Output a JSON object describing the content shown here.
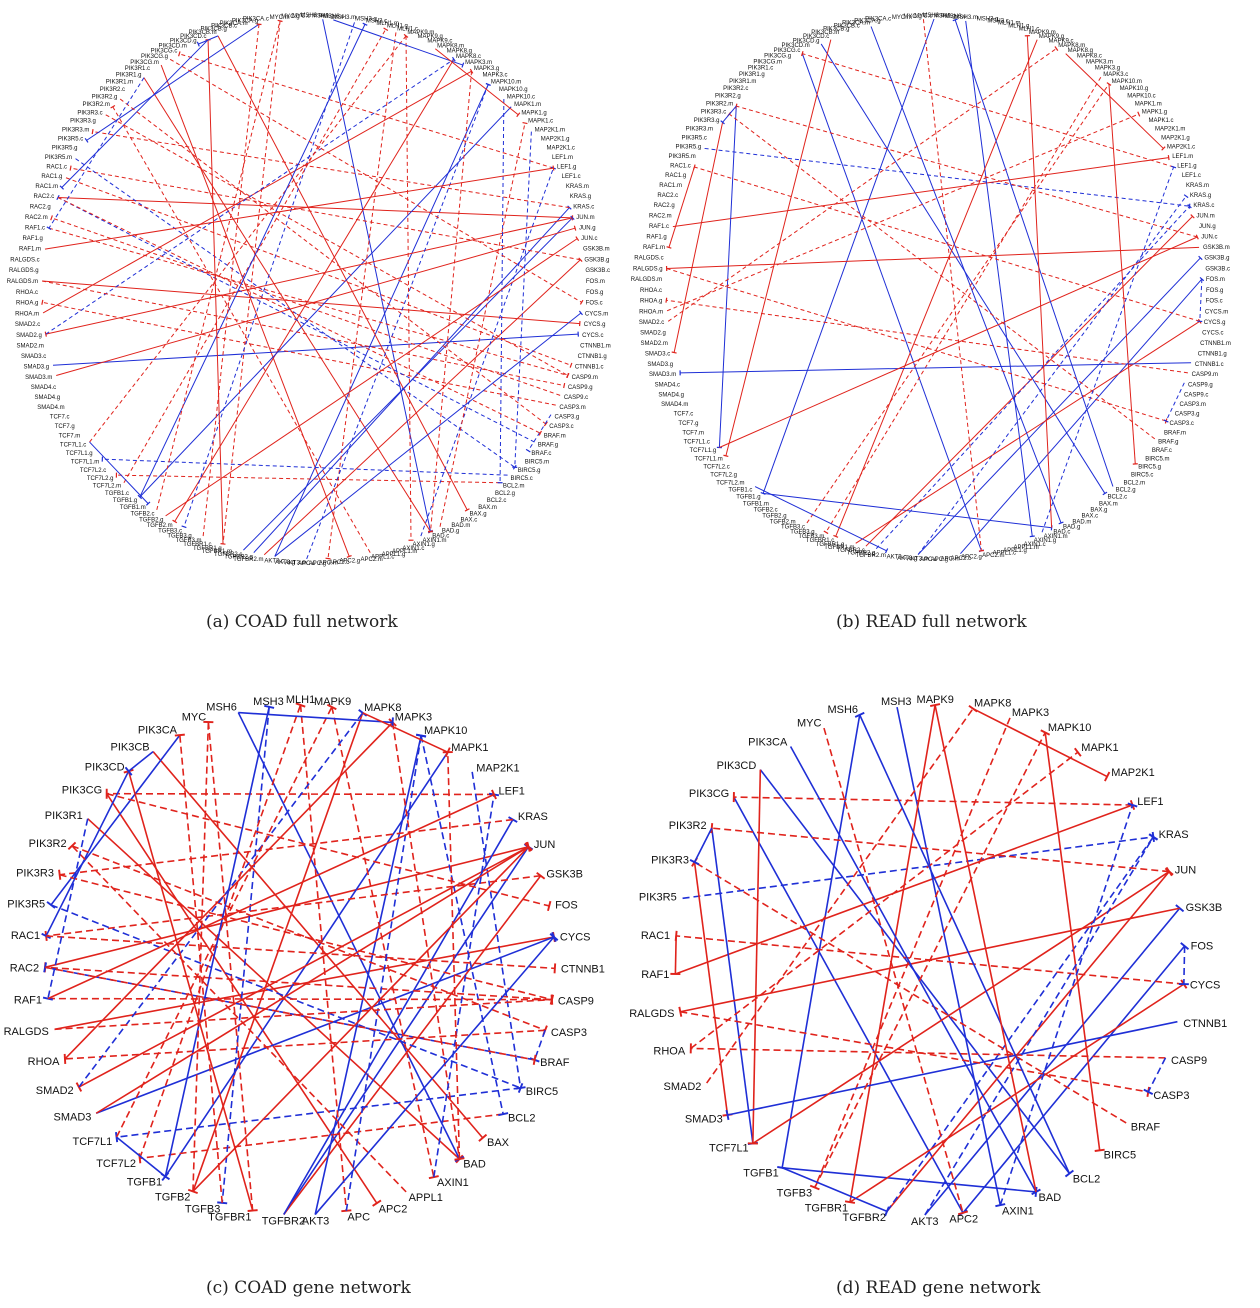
{
  "captions": {
    "a": "(a)  COAD full network",
    "b": "(b)  READ full network",
    "c": "(c)  COAD gene network",
    "d": "(d)  READ gene network"
  },
  "colors": {
    "positive": "#e0231c",
    "negative": "#1f2fd6"
  },
  "gene_ring_order": [
    "MSH6",
    "MSH3",
    "MLH1",
    "MAPK9",
    "MAPK8",
    "MAPK3",
    "MAPK10",
    "MAPK1",
    "MAP2K1",
    "LEF1",
    "KRAS",
    "JUN",
    "GSK3B",
    "FOS",
    "CYCS",
    "CTNNB1",
    "CASP9",
    "CASP3",
    "BRAF",
    "BIRC5",
    "BCL2",
    "BAX",
    "BAD",
    "AXIN1",
    "APPL1",
    "APC2",
    "APC",
    "AKT3",
    "TGFBR2",
    "TGFBR1",
    "TGFB3",
    "TGFB2",
    "TGFB1",
    "TCF7L2",
    "TCF7L1",
    "SMAD3",
    "SMAD2",
    "RHOA",
    "RALGDS",
    "RAF1",
    "RAC2",
    "RAC1",
    "PIK3R5",
    "PIK3R3",
    "PIK3R2",
    "PIK3R1",
    "PIK3CG",
    "PIK3CD",
    "PIK3CB",
    "PIK3CA",
    "MYC"
  ],
  "full_ring_order": [
    "MSH6.m",
    "MSH6.g",
    "MSH6.c",
    "MSH3.m",
    "MSH3.g",
    "MSH3.c",
    "MLH1.m",
    "MLH1.g",
    "MLH1.c",
    "MAPK9.m",
    "MAPK9.g",
    "MAPK9.c",
    "MAPK8.m",
    "MAPK8.g",
    "MAPK8.c",
    "MAPK3.m",
    "MAPK3.g",
    "MAPK3.c",
    "MAPK10.m",
    "MAPK10.g",
    "MAPK10.c",
    "MAPK1.m",
    "MAPK1.g",
    "MAPK1.c",
    "MAP2K1.m",
    "MAP2K1.g",
    "MAP2K1.c",
    "LEF1.m",
    "LEF1.g",
    "LEF1.c",
    "KRAS.m",
    "KRAS.g",
    "KRAS.c",
    "JUN.m",
    "JUN.g",
    "JUN.c",
    "GSK3B.m",
    "GSK3B.g",
    "GSK3B.c",
    "FOS.m",
    "FOS.g",
    "FOS.c",
    "CYCS.m",
    "CYCS.g",
    "CYCS.c",
    "CTNNB1.m",
    "CTNNB1.g",
    "CTNNB1.c",
    "CASP9.m",
    "CASP9.g",
    "CASP9.c",
    "CASP3.m",
    "CASP3.g",
    "CASP3.c",
    "BRAF.m",
    "BRAF.g",
    "BRAF.c",
    "BIRC5.m",
    "BIRC5.g",
    "BIRC5.c",
    "BCL2.m",
    "BCL2.g",
    "BCL2.c",
    "BAX.m",
    "BAX.g",
    "BAX.c",
    "BAD.m",
    "BAD.g",
    "BAD.c",
    "AXIN1.m",
    "AXIN1.g",
    "AXIN1.c",
    "APPL1.m",
    "APPL1.g",
    "APPL1.c",
    "APC2.m",
    "APC2.g",
    "APC2.c",
    "APC.m",
    "APC.g",
    "APC.c",
    "AKT3.m",
    "AKT3.g",
    "AKT3.c",
    "TGFBR2.m",
    "TGFBR2.g",
    "TGFBR2.c",
    "TGFBR1.m",
    "TGFBR1.g",
    "TGFBR1.c",
    "TGFB3.m",
    "TGFB3.g",
    "TGFB3.c",
    "TGFB2.m",
    "TGFB2.g",
    "TGFB2.c",
    "TGFB1.m",
    "TGFB1.g",
    "TGFB1.c",
    "TCF7L2.m",
    "TCF7L2.g",
    "TCF7L2.c",
    "TCF7L1.m",
    "TCF7L1.g",
    "TCF7L1.c",
    "TCF7.m",
    "TCF7.g",
    "TCF7.c",
    "SMAD4.m",
    "SMAD4.g",
    "SMAD4.c",
    "SMAD3.m",
    "SMAD3.g",
    "SMAD3.c",
    "SMAD2.m",
    "SMAD2.g",
    "SMAD2.c",
    "RHOA.m",
    "RHOA.g",
    "RHOA.c",
    "RALGDS.m",
    "RALGDS.g",
    "RALGDS.c",
    "RAF1.m",
    "RAF1.g",
    "RAF1.c",
    "RAC2.m",
    "RAC2.g",
    "RAC2.c",
    "RAC1.m",
    "RAC1.g",
    "RAC1.c",
    "PIK3R5.m",
    "PIK3R5.g",
    "PIK3R5.c",
    "PIK3R3.m",
    "PIK3R3.g",
    "PIK3R3.c",
    "PIK3R2.m",
    "PIK3R2.g",
    "PIK3R2.c",
    "PIK3R1.m",
    "PIK3R1.g",
    "PIK3R1.c",
    "PIK3CG.m",
    "PIK3CG.g",
    "PIK3CG.c",
    "PIK3CD.m",
    "PIK3CD.g",
    "PIK3CD.c",
    "PIK3CB.m",
    "PIK3CB.g",
    "PIK3CB.c",
    "PIK3CA.m",
    "PIK3CA.g",
    "PIK3CA.c",
    "MYC.m",
    "MYC.g",
    "MYC.c"
  ],
  "networks": {
    "coad_gene": {
      "nodes": [
        "MSH6",
        "MSH3",
        "MLH1",
        "MAPK9",
        "MAPK8",
        "MAPK3",
        "MAPK10",
        "MAPK1",
        "MAP2K1",
        "LEF1",
        "KRAS",
        "JUN",
        "GSK3B",
        "FOS",
        "CYCS",
        "CTNNB1",
        "CASP9",
        "CASP3",
        "BRAF",
        "BIRC5",
        "BCL2",
        "BAX",
        "BAD",
        "AXIN1",
        "APPL1",
        "APC2",
        "APC",
        "AKT3",
        "TGFBR2",
        "TGFBR1",
        "TGFB3",
        "TGFB2",
        "TGFB1",
        "TCF7L2",
        "TCF7L1",
        "SMAD3",
        "SMAD2",
        "RHOA",
        "RALGDS",
        "RAF1",
        "RAC2",
        "RAC1",
        "PIK3R5",
        "PIK3R3",
        "PIK3R2",
        "PIK3R1",
        "PIK3CG",
        "PIK3CD",
        "PIK3CB",
        "PIK3CA",
        "MYC"
      ],
      "edges": [
        [
          "PIK3CG",
          "APC2",
          "pos",
          "solid"
        ],
        [
          "PIK3R1",
          "BAD",
          "pos",
          "solid"
        ],
        [
          "RAC2",
          "JUN",
          "pos",
          "solid"
        ],
        [
          "RALGDS",
          "CYCS",
          "pos",
          "solid"
        ],
        [
          "SMAD3",
          "CYCS",
          "neg",
          "solid"
        ],
        [
          "TGFBR2",
          "JUN",
          "neg",
          "solid"
        ],
        [
          "TGFBR2",
          "GSK3B",
          "pos",
          "solid"
        ],
        [
          "TGFBR2",
          "KRAS",
          "neg",
          "solid"
        ],
        [
          "AKT3",
          "MAPK10",
          "neg",
          "solid"
        ],
        [
          "PIK3CB",
          "BAX",
          "pos",
          "solid"
        ],
        [
          "MSH6",
          "BAD",
          "neg",
          "solid"
        ],
        [
          "MAPK8",
          "TGFB2",
          "pos",
          "solid"
        ],
        [
          "MAPK1",
          "TGFB1",
          "neg",
          "solid"
        ],
        [
          "LEF1",
          "PIK3CG",
          "pos",
          "dashed"
        ],
        [
          "KRAS",
          "PIK3R3",
          "pos",
          "dashed"
        ],
        [
          "JUN",
          "SMAD2",
          "pos",
          "solid"
        ],
        [
          "GSK3B",
          "RAC1",
          "pos",
          "dashed"
        ],
        [
          "CASP9",
          "RAC2",
          "pos",
          "dashed"
        ],
        [
          "CASP3",
          "RHOA",
          "pos",
          "dashed"
        ],
        [
          "BRAF",
          "RAC2",
          "neg",
          "dashed"
        ],
        [
          "BIRC5",
          "TCF7L1",
          "neg",
          "dashed"
        ],
        [
          "BCL2",
          "TCF7L2",
          "pos",
          "dashed"
        ],
        [
          "PIK3CA",
          "PIK3R5",
          "neg",
          "solid"
        ],
        [
          "PIK3CD",
          "RAC1",
          "neg",
          "solid"
        ],
        [
          "MYC",
          "TGFBR1",
          "pos",
          "dashed"
        ],
        [
          "MSH3",
          "TGFB3",
          "neg",
          "dashed"
        ],
        [
          "MLH1",
          "APC",
          "pos",
          "dashed"
        ],
        [
          "MAPK9",
          "AXIN1",
          "pos",
          "dashed"
        ],
        [
          "MAPK3",
          "BAD",
          "pos",
          "dashed"
        ],
        [
          "MAPK10",
          "BCL2",
          "neg",
          "dashed"
        ],
        [
          "MAP2K1",
          "BIRC5",
          "neg",
          "dashed"
        ],
        [
          "PIK3R2",
          "CASP3",
          "pos",
          "dashed"
        ],
        [
          "PIK3R3",
          "CASP9",
          "pos",
          "dashed"
        ],
        [
          "PIK3R5",
          "BIRC5",
          "neg",
          "dashed"
        ],
        [
          "RAC1",
          "CTNNB1",
          "pos",
          "dashed"
        ],
        [
          "RAF1",
          "CASP9",
          "pos",
          "dashed"
        ],
        [
          "RHOA",
          "MAPK3",
          "pos",
          "solid"
        ],
        [
          "SMAD2",
          "MAPK8",
          "neg",
          "dashed"
        ],
        [
          "TCF7L1",
          "MAPK9",
          "pos",
          "dashed"
        ],
        [
          "TCF7L2",
          "MLH1",
          "pos",
          "dashed"
        ],
        [
          "TGFB1",
          "MSH3",
          "neg",
          "solid"
        ],
        [
          "TGFB2",
          "MYC",
          "pos",
          "dashed"
        ],
        [
          "TGFB3",
          "PIK3CA",
          "pos",
          "dashed"
        ],
        [
          "TGFBR1",
          "PIK3CD",
          "pos",
          "solid"
        ],
        [
          "APPL1",
          "PIK3R2",
          "pos",
          "dashed"
        ],
        [
          "AXIN1",
          "LEF1",
          "neg",
          "dashed"
        ],
        [
          "BAD",
          "MAPK1",
          "pos",
          "dashed"
        ],
        [
          "APC",
          "MAPK10",
          "neg",
          "dashed"
        ],
        [
          "PIK3CB",
          "PIK3CD",
          "neg",
          "solid"
        ],
        [
          "PIK3R1",
          "RAF1",
          "neg",
          "dashed"
        ],
        [
          "MSH6",
          "MAPK3",
          "neg",
          "solid"
        ],
        [
          "MAPK8",
          "MAPK1",
          "pos",
          "solid"
        ],
        [
          "CASP3",
          "BRAF",
          "neg",
          "dashed"
        ],
        [
          "TCF7L1",
          "TGFB1",
          "neg",
          "solid"
        ],
        [
          "RALGDS",
          "CASP9",
          "pos",
          "dashed"
        ],
        [
          "PIK3CG",
          "FOS",
          "pos",
          "dashed"
        ],
        [
          "RAC2",
          "BRAF",
          "pos",
          "dashed"
        ],
        [
          "SMAD3",
          "JUN",
          "pos",
          "solid"
        ],
        [
          "TGFB2",
          "JUN",
          "pos",
          "solid"
        ],
        [
          "AKT3",
          "CYCS",
          "neg",
          "solid"
        ],
        [
          "RAF1",
          "LEF1",
          "pos",
          "solid"
        ]
      ]
    },
    "read_gene": {
      "nodes": [
        "MSH6",
        "MSH3",
        "MAPK9",
        "MAPK8",
        "MAPK3",
        "MAPK10",
        "MAPK1",
        "MAP2K1",
        "LEF1",
        "KRAS",
        "JUN",
        "GSK3B",
        "FOS",
        "CYCS",
        "CTNNB1",
        "CASP9",
        "CASP3",
        "BRAF",
        "BIRC5",
        "BCL2",
        "BAD",
        "AXIN1",
        "APC2",
        "AKT3",
        "TGFBR2",
        "TGFBR1",
        "TGFB3",
        "TGFB1",
        "TCF7L1",
        "SMAD3",
        "SMAD2",
        "RHOA",
        "RALGDS",
        "RAF1",
        "RAC1",
        "PIK3R5",
        "PIK3R3",
        "PIK3R2",
        "PIK3CG",
        "PIK3CD",
        "PIK3CA",
        "MYC"
      ],
      "edges": [
        [
          "PIK3CD",
          "BCL2",
          "neg",
          "solid"
        ],
        [
          "PIK3CG",
          "APC2",
          "neg",
          "solid"
        ],
        [
          "MSH6",
          "TGFB1",
          "neg",
          "solid"
        ],
        [
          "TGFB1",
          "BAD",
          "neg",
          "solid"
        ],
        [
          "TGFBR2",
          "JUN",
          "pos",
          "solid"
        ],
        [
          "AKT3",
          "GSK3B",
          "neg",
          "solid"
        ],
        [
          "TGFBR2",
          "KRAS",
          "neg",
          "dashed"
        ],
        [
          "APC2",
          "FOS",
          "neg",
          "solid"
        ],
        [
          "TGFBR1",
          "CYCS",
          "pos",
          "solid"
        ],
        [
          "PIK3R5",
          "KRAS",
          "neg",
          "dashed"
        ],
        [
          "RAF1",
          "LEF1",
          "pos",
          "solid"
        ],
        [
          "PIK3R2",
          "TCF7L1",
          "neg",
          "solid"
        ],
        [
          "PIK3R3",
          "SMAD3",
          "pos",
          "solid"
        ],
        [
          "PIK3CD",
          "TCF7L1",
          "pos",
          "solid"
        ],
        [
          "MSH3",
          "AXIN1",
          "neg",
          "solid"
        ],
        [
          "MAPK9",
          "TGFBR1",
          "pos",
          "solid"
        ],
        [
          "MAPK3",
          "TGFB3",
          "pos",
          "dashed"
        ],
        [
          "MAPK10",
          "BIRC5",
          "pos",
          "solid"
        ],
        [
          "LEF1",
          "PIK3CG",
          "pos",
          "dashed"
        ],
        [
          "JUN",
          "PIK3R2",
          "pos",
          "dashed"
        ],
        [
          "GSK3B",
          "RALGDS",
          "pos",
          "solid"
        ],
        [
          "CYCS",
          "RAC1",
          "pos",
          "dashed"
        ],
        [
          "CTNNB1",
          "SMAD3",
          "neg",
          "solid"
        ],
        [
          "CASP9",
          "RHOA",
          "pos",
          "dashed"
        ],
        [
          "BRAF",
          "PIK3R3",
          "pos",
          "dashed"
        ],
        [
          "MYC",
          "APC2",
          "pos",
          "dashed"
        ],
        [
          "PIK3CA",
          "BAD",
          "neg",
          "solid"
        ],
        [
          "RALGDS",
          "CASP3",
          "pos",
          "dashed"
        ],
        [
          "SMAD2",
          "MAPK8",
          "pos",
          "dashed"
        ],
        [
          "RHOA",
          "MAPK1",
          "pos",
          "dashed"
        ],
        [
          "TCF7L1",
          "JUN",
          "pos",
          "solid"
        ],
        [
          "TGFB3",
          "MAPK10",
          "pos",
          "dashed"
        ],
        [
          "AKT3",
          "KRAS",
          "neg",
          "dashed"
        ],
        [
          "BCL2",
          "MSH6",
          "neg",
          "solid"
        ],
        [
          "BAD",
          "MAPK9",
          "pos",
          "solid"
        ],
        [
          "AXIN1",
          "LEF1",
          "neg",
          "dashed"
        ],
        [
          "MAPK8",
          "MAP2K1",
          "pos",
          "solid"
        ],
        [
          "RAC1",
          "RAF1",
          "pos",
          "solid"
        ],
        [
          "PIK3R2",
          "PIK3R3",
          "neg",
          "solid"
        ],
        [
          "CASP9",
          "CASP3",
          "neg",
          "dashed"
        ],
        [
          "TGFB1",
          "TGFBR2",
          "neg",
          "solid"
        ],
        [
          "FOS",
          "CYCS",
          "neg",
          "dashed"
        ]
      ]
    }
  }
}
